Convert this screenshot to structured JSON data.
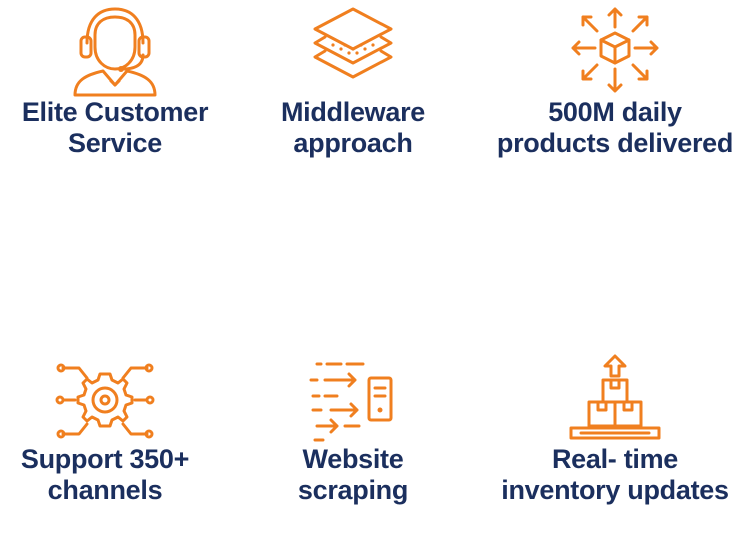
{
  "features": [
    {
      "line1": "Elite Customer",
      "line2": "Service",
      "icon": "headset-agent-icon"
    },
    {
      "line1": "Middleware",
      "line2": "approach",
      "icon": "layers-icon"
    },
    {
      "line1": "500M daily",
      "line2": "products delivered",
      "icon": "box-distribution-icon"
    },
    {
      "line1": "Support 350+",
      "line2": "channels",
      "icon": "gear-network-icon"
    },
    {
      "line1": "Website",
      "line2": "scraping",
      "icon": "data-scraping-icon"
    },
    {
      "line1": "Real- time",
      "line2": "inventory updates",
      "icon": "inventory-boxes-icon"
    }
  ],
  "colors": {
    "icon": "#f07f1f",
    "text": "#1b2f5e",
    "background": "#ffffff"
  }
}
